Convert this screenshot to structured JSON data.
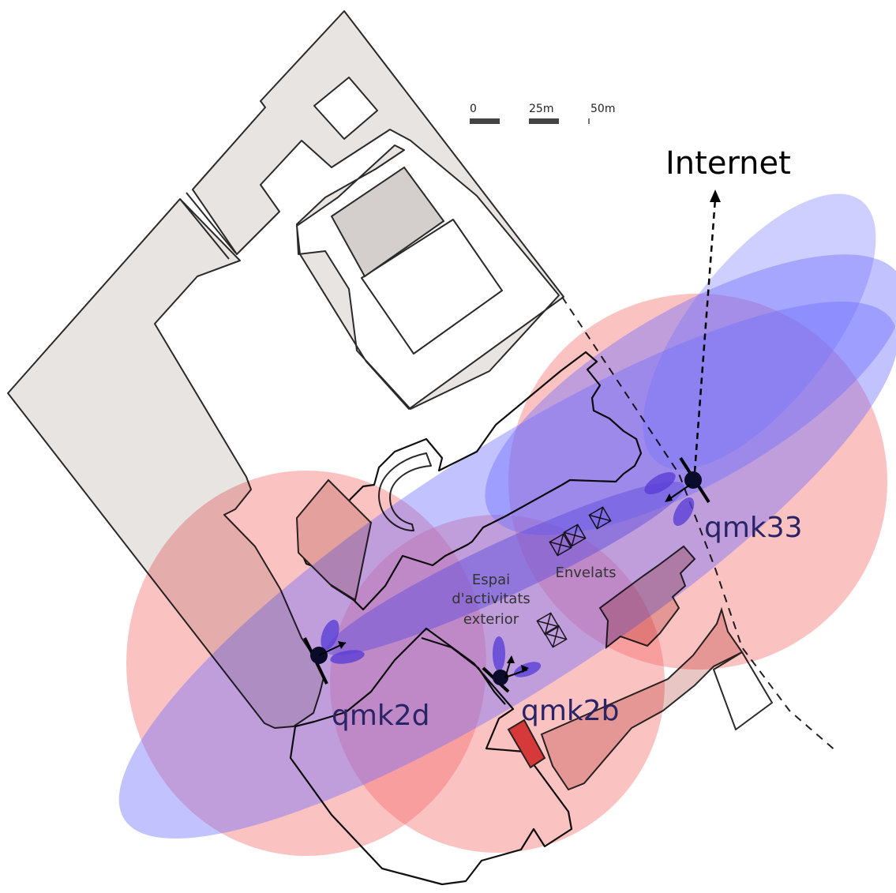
{
  "scale": {
    "tick_0": "0",
    "tick_25": "25m",
    "tick_50": "50m"
  },
  "labels": {
    "internet": "Internet",
    "node_qmk33": "qmk33",
    "node_qmk2d": "qmk2d",
    "node_qmk2b": "qmk2b",
    "area_line1": "Espai",
    "area_line2": "d'activitats",
    "area_line3": "exterior",
    "tents": "Envelats"
  },
  "colors": {
    "coverage_omni": "#f88686",
    "coverage_directional": "#7878ff",
    "node_label": "#2a2466",
    "building_fill": "#e8e4e2"
  }
}
